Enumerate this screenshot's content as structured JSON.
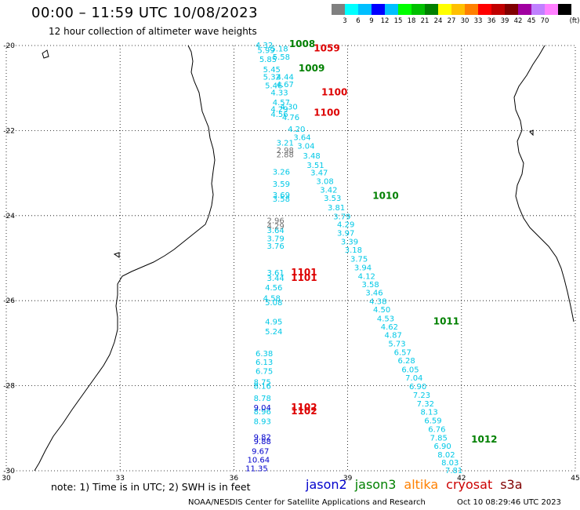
{
  "header": {
    "title": "00:00 – 11:59 UTC 10/08/2023",
    "subtitle": "12 hour collection of altimeter wave heights"
  },
  "legend": {
    "unit": "(ft)",
    "colors": [
      "#808080",
      "#00ffff",
      "#00bfff",
      "#0000ff",
      "#00c0ff",
      "#00ff00",
      "#00c000",
      "#008000",
      "#ffff00",
      "#ffc000",
      "#ff8000",
      "#ff0000",
      "#c00000",
      "#800000",
      "#a000a0",
      "#c080ff",
      "#ff80ff",
      "#000000"
    ],
    "labels": [
      "3",
      "6",
      "9",
      "12",
      "15",
      "18",
      "21",
      "24",
      "27",
      "30",
      "33",
      "36",
      "39",
      "42",
      "45",
      "70"
    ]
  },
  "axes": {
    "lon_ticks": [
      "30",
      "33",
      "36",
      "39",
      "42",
      "45"
    ],
    "lat_ticks": [
      "-20",
      "-22",
      "-24",
      "-26",
      "-28",
      "-30"
    ]
  },
  "tracks": {
    "cyan": [
      {
        "t": "4.32",
        "lon": 36.8,
        "lat": -20.0
      },
      {
        "t": "5.99",
        "lon": 36.85,
        "lat": -20.12
      },
      {
        "t": "5.18",
        "lon": 37.2,
        "lat": -20.08
      },
      {
        "t": "5.85",
        "lon": 36.9,
        "lat": -20.33
      },
      {
        "t": "5.58",
        "lon": 37.25,
        "lat": -20.28
      },
      {
        "t": "5.45",
        "lon": 37.0,
        "lat": -20.57
      },
      {
        "t": "5.32",
        "lon": 37.0,
        "lat": -20.75
      },
      {
        "t": "4.44",
        "lon": 37.35,
        "lat": -20.75
      },
      {
        "t": "5.46",
        "lon": 37.05,
        "lat": -20.95
      },
      {
        "t": "4.67",
        "lon": 37.35,
        "lat": -20.92
      },
      {
        "t": "4.33",
        "lon": 37.2,
        "lat": -21.12
      },
      {
        "t": "4.57",
        "lon": 37.25,
        "lat": -21.35
      },
      {
        "t": "4.29",
        "lon": 37.2,
        "lat": -21.5
      },
      {
        "t": "4.30",
        "lon": 37.45,
        "lat": -21.45
      },
      {
        "t": "4.56",
        "lon": 37.2,
        "lat": -21.62
      },
      {
        "t": "4.76",
        "lon": 37.5,
        "lat": -21.7
      },
      {
        "t": "4.20",
        "lon": 37.65,
        "lat": -21.97
      },
      {
        "t": "3.64",
        "lon": 37.8,
        "lat": -22.17
      },
      {
        "t": "3.21",
        "lon": 37.35,
        "lat": -22.3
      },
      {
        "t": "3.04",
        "lon": 37.9,
        "lat": -22.37
      },
      {
        "t": "3.48",
        "lon": 38.05,
        "lat": -22.6
      },
      {
        "t": "3.51",
        "lon": 38.15,
        "lat": -22.82
      },
      {
        "t": "3.26",
        "lon": 37.25,
        "lat": -22.98
      },
      {
        "t": "3.47",
        "lon": 38.25,
        "lat": -23.0
      },
      {
        "t": "3.08",
        "lon": 38.4,
        "lat": -23.2
      },
      {
        "t": "3.59",
        "lon": 37.25,
        "lat": -23.27
      },
      {
        "t": "3.42",
        "lon": 38.5,
        "lat": -23.4
      },
      {
        "t": "3.69",
        "lon": 37.25,
        "lat": -23.52
      },
      {
        "t": "3.58",
        "lon": 37.25,
        "lat": -23.62
      },
      {
        "t": "3.53",
        "lon": 38.6,
        "lat": -23.6
      },
      {
        "t": "3.81",
        "lon": 38.7,
        "lat": -23.82
      },
      {
        "t": "3.79",
        "lon": 38.85,
        "lat": -24.03
      },
      {
        "t": "4.29",
        "lon": 38.95,
        "lat": -24.22
      },
      {
        "t": "3.97",
        "lon": 38.95,
        "lat": -24.42
      },
      {
        "t": "3.64",
        "lon": 37.1,
        "lat": -24.35
      },
      {
        "t": "3.79",
        "lon": 37.1,
        "lat": -24.55
      },
      {
        "t": "3.39",
        "lon": 39.05,
        "lat": -24.62
      },
      {
        "t": "3.76",
        "lon": 37.1,
        "lat": -24.72
      },
      {
        "t": "3.18",
        "lon": 39.15,
        "lat": -24.82
      },
      {
        "t": "3.75",
        "lon": 39.3,
        "lat": -25.03
      },
      {
        "t": "3.94",
        "lon": 39.4,
        "lat": -25.23
      },
      {
        "t": "3.61",
        "lon": 37.1,
        "lat": -25.35
      },
      {
        "t": "3.44",
        "lon": 37.1,
        "lat": -25.48
      },
      {
        "t": "4.12",
        "lon": 39.5,
        "lat": -25.43
      },
      {
        "t": "3.58",
        "lon": 39.6,
        "lat": -25.63
      },
      {
        "t": "4.56",
        "lon": 37.05,
        "lat": -25.7
      },
      {
        "t": "3.46",
        "lon": 39.7,
        "lat": -25.82
      },
      {
        "t": "4.58",
        "lon": 37.0,
        "lat": -25.95
      },
      {
        "t": "5.08",
        "lon": 37.05,
        "lat": -26.05
      },
      {
        "t": "4.38",
        "lon": 39.8,
        "lat": -26.02
      },
      {
        "t": "4.50",
        "lon": 39.9,
        "lat": -26.22
      },
      {
        "t": "4.53",
        "lon": 40.0,
        "lat": -26.43
      },
      {
        "t": "4.95",
        "lon": 37.05,
        "lat": -26.5
      },
      {
        "t": "4.62",
        "lon": 40.1,
        "lat": -26.62
      },
      {
        "t": "5.24",
        "lon": 37.05,
        "lat": -26.73
      },
      {
        "t": "4.87",
        "lon": 40.2,
        "lat": -26.82
      },
      {
        "t": "5.73",
        "lon": 40.3,
        "lat": -27.02
      },
      {
        "t": "6.38",
        "lon": 36.8,
        "lat": -27.25
      },
      {
        "t": "6.57",
        "lon": 40.45,
        "lat": -27.22
      },
      {
        "t": "6.13",
        "lon": 36.8,
        "lat": -27.45
      },
      {
        "t": "6.28",
        "lon": 40.55,
        "lat": -27.42
      },
      {
        "t": "6.05",
        "lon": 40.65,
        "lat": -27.63
      },
      {
        "t": "6.75",
        "lon": 36.8,
        "lat": -27.67
      },
      {
        "t": "7.04",
        "lon": 40.75,
        "lat": -27.82
      },
      {
        "t": "8.75",
        "lon": 36.75,
        "lat": -27.92
      },
      {
        "t": "8.16",
        "lon": 36.75,
        "lat": -28.02
      },
      {
        "t": "6.90",
        "lon": 40.85,
        "lat": -28.03
      },
      {
        "t": "8.78",
        "lon": 36.75,
        "lat": -28.3
      },
      {
        "t": "7.23",
        "lon": 40.95,
        "lat": -28.23
      },
      {
        "t": "7.32",
        "lon": 41.05,
        "lat": -28.43
      },
      {
        "t": "8.96",
        "lon": 36.75,
        "lat": -28.62
      },
      {
        "t": "8.13",
        "lon": 41.15,
        "lat": -28.63
      },
      {
        "t": "8.93",
        "lon": 36.75,
        "lat": -28.85
      },
      {
        "t": "6.59",
        "lon": 41.25,
        "lat": -28.83
      },
      {
        "t": "6.76",
        "lon": 41.35,
        "lat": -29.03
      },
      {
        "t": "7.85",
        "lon": 41.4,
        "lat": -29.23
      },
      {
        "t": "6.90",
        "lon": 41.5,
        "lat": -29.43
      },
      {
        "t": "8.02",
        "lon": 41.6,
        "lat": -29.63
      },
      {
        "t": "8.03",
        "lon": 41.7,
        "lat": -29.82
      },
      {
        "t": "7.81",
        "lon": 41.8,
        "lat": -30.0
      }
    ],
    "blue": [
      {
        "t": "9.04",
        "lon": 36.75,
        "lat": -28.52
      },
      {
        "t": "9.82",
        "lon": 36.75,
        "lat": -29.22
      },
      {
        "t": "9.88",
        "lon": 36.75,
        "lat": -29.32
      },
      {
        "t": "9.67",
        "lon": 36.7,
        "lat": -29.55
      },
      {
        "t": "10.64",
        "lon": 36.65,
        "lat": -29.75
      },
      {
        "t": "11.35",
        "lon": 36.6,
        "lat": -29.95
      }
    ],
    "gray": [
      {
        "t": "2.98",
        "lon": 37.35,
        "lat": -22.47
      },
      {
        "t": "2.88",
        "lon": 37.35,
        "lat": -22.57
      },
      {
        "t": "2.96",
        "lon": 37.1,
        "lat": -24.12
      },
      {
        "t": "4.29",
        "lon": 37.1,
        "lat": -24.25
      }
    ],
    "green": [
      {
        "t": "1008",
        "lon": 37.8,
        "lat": -19.98
      },
      {
        "t": "1009",
        "lon": 38.05,
        "lat": -20.55
      },
      {
        "t": "1010",
        "lon": 40.0,
        "lat": -23.55
      },
      {
        "t": "1011",
        "lon": 41.6,
        "lat": -26.5
      },
      {
        "t": "1012",
        "lon": 42.6,
        "lat": -29.28
      }
    ],
    "red": [
      {
        "t": "1059",
        "lon": 38.45,
        "lat": -20.08
      },
      {
        "t": "1100",
        "lon": 38.65,
        "lat": -21.12
      },
      {
        "t": "1100",
        "lon": 38.45,
        "lat": -21.6
      },
      {
        "t": "1101",
        "lon": 37.85,
        "lat": -25.35
      },
      {
        "t": "1101",
        "lon": 37.85,
        "lat": -25.48
      },
      {
        "t": "1102",
        "lon": 37.85,
        "lat": -28.52
      },
      {
        "t": "1102",
        "lon": 37.85,
        "lat": -28.62
      }
    ]
  },
  "footer": {
    "note": "note:  1) Time is in UTC;  2) SWH is in feet",
    "satellites": [
      {
        "name": "jason2",
        "color": "#0000cc"
      },
      {
        "name": "jason3",
        "color": "#008000"
      },
      {
        "name": "altika",
        "color": "#ff8000"
      },
      {
        "name": "cryosat",
        "color": "#cc0000"
      },
      {
        "name": "s3a",
        "color": "#800000"
      }
    ],
    "credit": "NOAA/NESDIS Center for Satellite Applications and Research",
    "timestamp": "Oct 10 08:29:46 UTC 2023"
  }
}
